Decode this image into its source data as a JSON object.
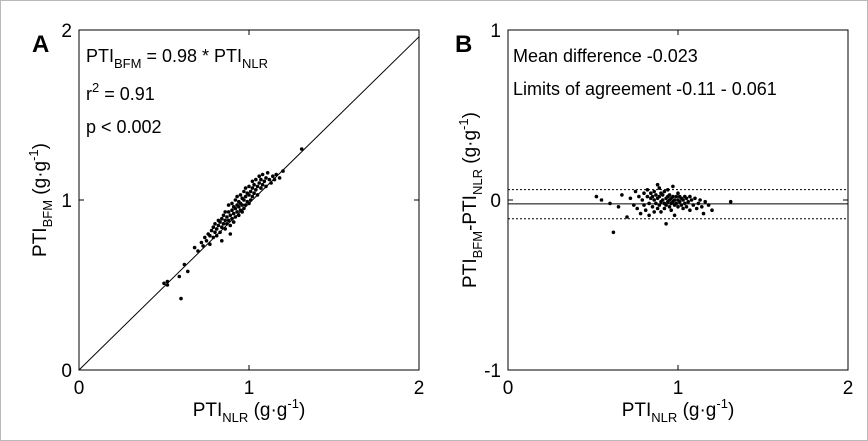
{
  "chart_data": [
    {
      "panel": "A",
      "type": "scatter",
      "xlabel": "PTI",
      "xlabel_sub": "NLR",
      "xlabel_unit": " (g·g",
      "xlabel_sup": "-1",
      "xlabel_close": ")",
      "ylabel": "PTI",
      "ylabel_sub": "BFM",
      "ylabel_unit": " (g·g",
      "ylabel_sup": "-1",
      "ylabel_close": ")",
      "xlim": [
        0,
        2
      ],
      "ylim": [
        0,
        2
      ],
      "xticks": [
        "0",
        "1",
        "2"
      ],
      "yticks": [
        "0",
        "1",
        "2"
      ],
      "fit_slope": 0.98,
      "annotations": {
        "eq_a": "PTI",
        "eq_a_sub": "BFM",
        "eq_b": " = 0.98 * PTI",
        "eq_b_sub": "NLR",
        "r2_a": "r",
        "r2_sup": "2",
        "r2_b": " = 0.91",
        "p": "p < 0.002"
      },
      "points": [
        [
          0.5,
          0.51
        ],
        [
          0.52,
          0.5
        ],
        [
          0.52,
          0.52
        ],
        [
          0.59,
          0.55
        ],
        [
          0.6,
          0.42
        ],
        [
          0.62,
          0.62
        ],
        [
          0.64,
          0.58
        ],
        [
          0.68,
          0.72
        ],
        [
          0.7,
          0.7
        ],
        [
          0.72,
          0.75
        ],
        [
          0.73,
          0.73
        ],
        [
          0.74,
          0.78
        ],
        [
          0.75,
          0.76
        ],
        [
          0.76,
          0.8
        ],
        [
          0.77,
          0.74
        ],
        [
          0.77,
          0.79
        ],
        [
          0.78,
          0.82
        ],
        [
          0.79,
          0.78
        ],
        [
          0.79,
          0.84
        ],
        [
          0.8,
          0.81
        ],
        [
          0.8,
          0.86
        ],
        [
          0.81,
          0.79
        ],
        [
          0.81,
          0.83
        ],
        [
          0.82,
          0.85
        ],
        [
          0.82,
          0.88
        ],
        [
          0.83,
          0.81
        ],
        [
          0.83,
          0.87
        ],
        [
          0.84,
          0.84
        ],
        [
          0.84,
          0.89
        ],
        [
          0.85,
          0.86
        ],
        [
          0.85,
          0.91
        ],
        [
          0.86,
          0.83
        ],
        [
          0.86,
          0.88
        ],
        [
          0.86,
          0.93
        ],
        [
          0.87,
          0.86
        ],
        [
          0.87,
          0.9
        ],
        [
          0.88,
          0.88
        ],
        [
          0.88,
          0.93
        ],
        [
          0.88,
          0.97
        ],
        [
          0.89,
          0.85
        ],
        [
          0.89,
          0.91
        ],
        [
          0.9,
          0.89
        ],
        [
          0.9,
          0.94
        ],
        [
          0.9,
          0.98
        ],
        [
          0.91,
          0.87
        ],
        [
          0.91,
          0.92
        ],
        [
          0.91,
          0.96
        ],
        [
          0.92,
          0.9
        ],
        [
          0.92,
          0.95
        ],
        [
          0.92,
          1.0
        ],
        [
          0.93,
          0.93
        ],
        [
          0.93,
          0.97
        ],
        [
          0.93,
          1.02
        ],
        [
          0.94,
          0.91
        ],
        [
          0.94,
          0.96
        ],
        [
          0.94,
          0.99
        ],
        [
          0.95,
          0.94
        ],
        [
          0.95,
          0.98
        ],
        [
          0.95,
          1.03
        ],
        [
          0.96,
          0.93
        ],
        [
          0.96,
          0.97
        ],
        [
          0.96,
          1.01
        ],
        [
          0.97,
          0.95
        ],
        [
          0.97,
          1.0
        ],
        [
          0.97,
          1.05
        ],
        [
          0.98,
          0.97
        ],
        [
          0.98,
          1.02
        ],
        [
          0.98,
          1.07
        ],
        [
          0.99,
          0.99
        ],
        [
          0.99,
          1.04
        ],
        [
          1.0,
          0.98
        ],
        [
          1.0,
          1.03
        ],
        [
          1.0,
          1.08
        ],
        [
          1.01,
          1.0
        ],
        [
          1.01,
          1.05
        ],
        [
          1.02,
          1.02
        ],
        [
          1.02,
          1.07
        ],
        [
          1.02,
          1.11
        ],
        [
          1.03,
          1.04
        ],
        [
          1.03,
          1.09
        ],
        [
          1.04,
          1.06
        ],
        [
          1.04,
          1.12
        ],
        [
          1.05,
          1.03
        ],
        [
          1.05,
          1.08
        ],
        [
          1.06,
          1.1
        ],
        [
          1.06,
          1.14
        ],
        [
          1.07,
          1.07
        ],
        [
          1.07,
          1.12
        ],
        [
          1.08,
          1.09
        ],
        [
          1.08,
          1.15
        ],
        [
          1.09,
          1.11
        ],
        [
          1.1,
          1.08
        ],
        [
          1.1,
          1.13
        ],
        [
          1.11,
          1.16
        ],
        [
          1.12,
          1.12
        ],
        [
          1.13,
          1.1
        ],
        [
          1.14,
          1.14
        ],
        [
          1.15,
          1.12
        ],
        [
          1.16,
          1.15
        ],
        [
          1.18,
          1.13
        ],
        [
          1.2,
          1.17
        ],
        [
          1.31,
          1.3
        ],
        [
          0.89,
          0.8
        ],
        [
          0.84,
          0.76
        ]
      ]
    },
    {
      "panel": "B",
      "type": "scatter",
      "xlabel": "PTI",
      "xlabel_sub": "NLR",
      "xlabel_unit": " (g·g",
      "xlabel_sup": "-1",
      "xlabel_close": ")",
      "ylabel": "PTI",
      "ylabel_sub": "BFM",
      "ylabel_mid": "-PTI",
      "ylabel_sub2": "NLR",
      "ylabel_unit": " (g·g",
      "ylabel_sup": "-1",
      "ylabel_close": ")",
      "xlim": [
        0,
        2
      ],
      "ylim": [
        -1,
        1
      ],
      "xticks": [
        "0",
        "1",
        "2"
      ],
      "yticks": [
        "-1",
        "0",
        "1"
      ],
      "mean_difference": -0.023,
      "limits_of_agreement": [
        -0.11,
        0.061
      ],
      "annotations": {
        "mean": "Mean difference -0.023",
        "limits": "Limits of agreement -0.11 - 0.061"
      },
      "points": [
        [
          0.52,
          0.02
        ],
        [
          0.55,
          0.0
        ],
        [
          0.6,
          -0.02
        ],
        [
          0.62,
          -0.19
        ],
        [
          0.65,
          -0.04
        ],
        [
          0.67,
          0.03
        ],
        [
          0.7,
          -0.1
        ],
        [
          0.72,
          0.01
        ],
        [
          0.74,
          -0.03
        ],
        [
          0.75,
          0.05
        ],
        [
          0.76,
          -0.05
        ],
        [
          0.77,
          0.02
        ],
        [
          0.78,
          -0.08
        ],
        [
          0.79,
          0.0
        ],
        [
          0.8,
          0.04
        ],
        [
          0.8,
          -0.03
        ],
        [
          0.81,
          -0.06
        ],
        [
          0.82,
          0.02
        ],
        [
          0.82,
          0.06
        ],
        [
          0.83,
          -0.02
        ],
        [
          0.83,
          -0.09
        ],
        [
          0.84,
          0.01
        ],
        [
          0.84,
          0.04
        ],
        [
          0.85,
          -0.04
        ],
        [
          0.85,
          0.02
        ],
        [
          0.86,
          -0.07
        ],
        [
          0.86,
          0.0
        ],
        [
          0.86,
          0.05
        ],
        [
          0.87,
          -0.02
        ],
        [
          0.87,
          0.03
        ],
        [
          0.88,
          -0.05
        ],
        [
          0.88,
          0.01
        ],
        [
          0.88,
          0.09
        ],
        [
          0.89,
          -0.03
        ],
        [
          0.89,
          0.02
        ],
        [
          0.9,
          -0.01
        ],
        [
          0.9,
          0.04
        ],
        [
          0.9,
          -0.07
        ],
        [
          0.91,
          0.0
        ],
        [
          0.91,
          0.03
        ],
        [
          0.92,
          -0.02
        ],
        [
          0.92,
          0.05
        ],
        [
          0.92,
          -0.05
        ],
        [
          0.93,
          0.01
        ],
        [
          0.93,
          -0.03
        ],
        [
          0.94,
          0.02
        ],
        [
          0.94,
          -0.01
        ],
        [
          0.94,
          0.06
        ],
        [
          0.95,
          -0.04
        ],
        [
          0.95,
          0.0
        ],
        [
          0.95,
          0.03
        ],
        [
          0.96,
          -0.02
        ],
        [
          0.96,
          0.01
        ],
        [
          0.96,
          -0.06
        ],
        [
          0.97,
          0.02
        ],
        [
          0.97,
          -0.01
        ],
        [
          0.97,
          0.08
        ],
        [
          0.98,
          -0.03
        ],
        [
          0.98,
          0.0
        ],
        [
          0.99,
          0.02
        ],
        [
          0.99,
          -0.02
        ],
        [
          1.0,
          0.0
        ],
        [
          1.0,
          0.04
        ],
        [
          1.0,
          -0.04
        ],
        [
          1.01,
          -0.01
        ],
        [
          1.01,
          0.02
        ],
        [
          1.02,
          -0.03
        ],
        [
          1.02,
          0.01
        ],
        [
          1.03,
          0.0
        ],
        [
          1.03,
          -0.05
        ],
        [
          1.04,
          0.02
        ],
        [
          1.04,
          -0.02
        ],
        [
          1.05,
          0.01
        ],
        [
          1.05,
          -0.04
        ],
        [
          1.06,
          -0.01
        ],
        [
          1.07,
          0.02
        ],
        [
          1.07,
          -0.06
        ],
        [
          1.08,
          0.0
        ],
        [
          1.09,
          -0.03
        ],
        [
          1.1,
          0.01
        ],
        [
          1.11,
          -0.05
        ],
        [
          1.12,
          -0.02
        ],
        [
          1.13,
          0.0
        ],
        [
          1.14,
          -0.04
        ],
        [
          1.15,
          -0.08
        ],
        [
          1.16,
          -0.01
        ],
        [
          1.18,
          -0.03
        ],
        [
          1.2,
          -0.06
        ],
        [
          1.31,
          -0.01
        ],
        [
          0.93,
          -0.14
        ],
        [
          0.98,
          -0.09
        ],
        [
          0.89,
          0.07
        ]
      ]
    }
  ],
  "panel_labels": [
    "A",
    "B"
  ]
}
